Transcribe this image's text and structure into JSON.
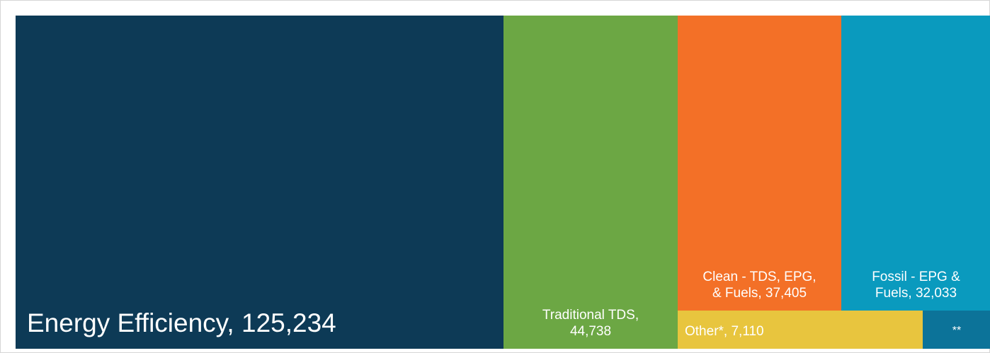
{
  "chart_data": {
    "type": "treemap",
    "title": "",
    "items": [
      {
        "key": "ee",
        "name": "Energy Efficiency",
        "value": 125234,
        "label": "Energy Efficiency, 125,234",
        "color": "#0d3a56"
      },
      {
        "key": "tds",
        "name": "Traditional TDS",
        "value": 44738,
        "label_lines": [
          "Traditional TDS,",
          "44,738"
        ],
        "color": "#6ca744"
      },
      {
        "key": "clean",
        "name": "Clean - TDS, EPG, & Fuels",
        "value": 37405,
        "label_lines": [
          "Clean - TDS, EPG,",
          "& Fuels, 37,405"
        ],
        "color": "#f37027"
      },
      {
        "key": "fossil",
        "name": "Fossil - EPG & Fuels",
        "value": 32033,
        "label_lines": [
          "Fossil - EPG &",
          "Fuels, 32,033"
        ],
        "color": "#0a9abe"
      },
      {
        "key": "other",
        "name": "Other*",
        "value": 7110,
        "label": "Other*, 7,110",
        "color": "#e8c53e"
      },
      {
        "key": "dstar",
        "name": "**",
        "value": null,
        "label": "**",
        "color": "#0c7399"
      }
    ]
  }
}
